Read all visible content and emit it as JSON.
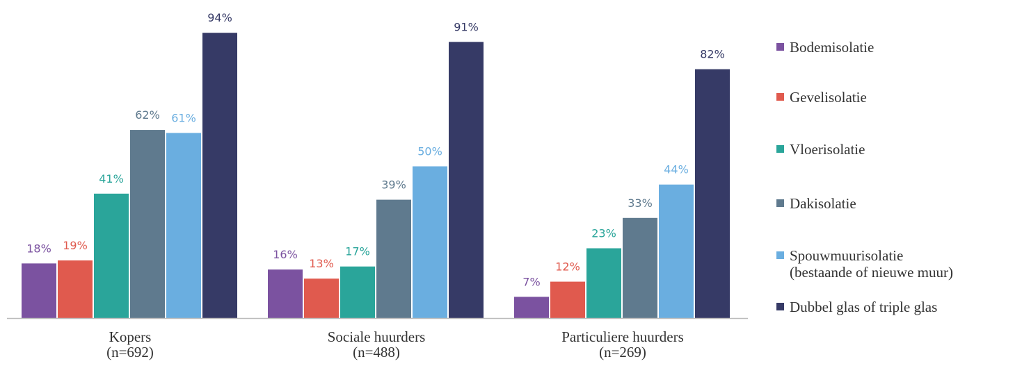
{
  "chart_data": {
    "type": "bar",
    "categories": [
      "Kopers\n(n=692)",
      "Sociale huurders\n(n=488)",
      "Particuliere huurders\n(n=269)"
    ],
    "ylim": [
      0,
      100
    ],
    "series": [
      {
        "name": "Bodemisolatie",
        "color": "#7b52a0",
        "values": [
          18,
          16,
          7
        ],
        "value_labels": [
          "18%",
          "16%",
          "7%"
        ]
      },
      {
        "name": "Gevelisolatie",
        "color": "#e05a4e",
        "values": [
          19,
          13,
          12
        ],
        "value_labels": [
          "19%",
          "13%",
          "12%"
        ]
      },
      {
        "name": "Vloerisolatie",
        "color": "#2aa59a",
        "values": [
          41,
          17,
          23
        ],
        "value_labels": [
          "41%",
          "17%",
          "23%"
        ]
      },
      {
        "name": "Dakisolatie",
        "color": "#5f7a8e",
        "values": [
          62,
          39,
          33
        ],
        "value_labels": [
          "62%",
          "39%",
          "33%"
        ]
      },
      {
        "name": "Spouwmuurisolatie\n(bestaande of nieuwe muur)",
        "color": "#6aaee0",
        "values": [
          61,
          50,
          44
        ],
        "value_labels": [
          "61%",
          "50%",
          "44%"
        ]
      },
      {
        "name": "Dubbel glas of triple glas",
        "color": "#363a66",
        "values": [
          94,
          91,
          82
        ],
        "value_labels": [
          "94%",
          "91%",
          "82%"
        ]
      }
    ],
    "legend": "right"
  }
}
